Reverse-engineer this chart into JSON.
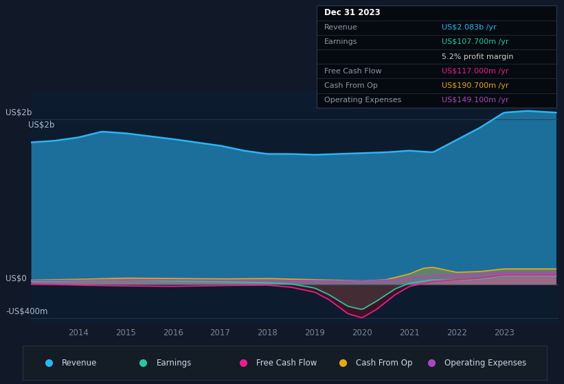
{
  "background_color": "#111827",
  "plot_bg_color": "#0d1b2e",
  "colors": {
    "revenue": "#29b6f6",
    "earnings": "#26c6a6",
    "free_cash_flow": "#e91e8c",
    "cash_from_op": "#e6a817",
    "operating_expenses": "#ab47bc"
  },
  "legend": [
    {
      "label": "Revenue",
      "color": "#29b6f6"
    },
    {
      "label": "Earnings",
      "color": "#26c6a6"
    },
    {
      "label": "Free Cash Flow",
      "color": "#e91e8c"
    },
    {
      "label": "Cash From Op",
      "color": "#e6a817"
    },
    {
      "label": "Operating Expenses",
      "color": "#ab47bc"
    }
  ],
  "x_ticks": [
    2014,
    2015,
    2016,
    2017,
    2018,
    2019,
    2020,
    2021,
    2022,
    2023
  ],
  "ylabel_top": "US$2b",
  "ylabel_zero": "US$0",
  "ylabel_bottom": "-US$400m",
  "tooltip_rows": [
    {
      "label": "Dec 31 2023",
      "value": "",
      "label_color": "#ffffff",
      "value_color": "#ffffff",
      "bold": true
    },
    {
      "label": "Revenue",
      "value": "US$2.083b /yr",
      "label_color": "#8899aa",
      "value_color": "#29b6f6",
      "bold": false
    },
    {
      "label": "Earnings",
      "value": "US$107.700m /yr",
      "label_color": "#8899aa",
      "value_color": "#26c6a6",
      "bold": false
    },
    {
      "label": "",
      "value": "5.2% profit margin",
      "label_color": "#8899aa",
      "value_color": "#cccccc",
      "bold": false
    },
    {
      "label": "Free Cash Flow",
      "value": "US$117.000m /yr",
      "label_color": "#8899aa",
      "value_color": "#e91e8c",
      "bold": false
    },
    {
      "label": "Cash From Op",
      "value": "US$190.700m /yr",
      "label_color": "#8899aa",
      "value_color": "#e6a817",
      "bold": false
    },
    {
      "label": "Operating Expenses",
      "value": "US$149.100m /yr",
      "label_color": "#8899aa",
      "value_color": "#ab47bc",
      "bold": false
    }
  ]
}
